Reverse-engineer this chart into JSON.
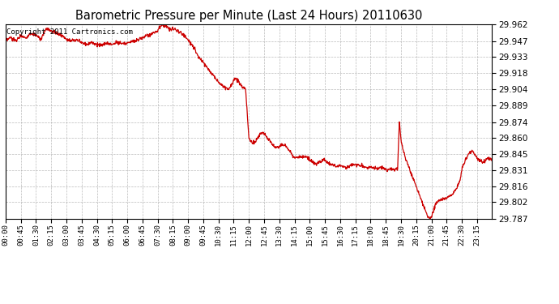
{
  "title": "Barometric Pressure per Minute (Last 24 Hours) 20110630",
  "copyright": "Copyright 2011 Cartronics.com",
  "line_color": "#cc0000",
  "background_color": "#ffffff",
  "grid_color": "#aaaaaa",
  "ylim": [
    29.787,
    29.962
  ],
  "yticks": [
    29.787,
    29.802,
    29.816,
    29.831,
    29.845,
    29.86,
    29.874,
    29.889,
    29.904,
    29.918,
    29.933,
    29.947,
    29.962
  ],
  "xtick_labels": [
    "00:00",
    "00:45",
    "01:30",
    "02:15",
    "03:00",
    "03:45",
    "04:30",
    "05:15",
    "06:00",
    "06:45",
    "07:30",
    "08:15",
    "09:00",
    "09:45",
    "10:30",
    "11:15",
    "12:00",
    "12:45",
    "13:30",
    "14:15",
    "15:00",
    "15:45",
    "16:30",
    "17:15",
    "18:00",
    "18:45",
    "19:30",
    "20:15",
    "21:00",
    "21:45",
    "22:30",
    "23:15"
  ],
  "waypoints": [
    [
      0,
      29.947
    ],
    [
      15,
      29.95
    ],
    [
      30,
      29.947
    ],
    [
      45,
      29.952
    ],
    [
      60,
      29.95
    ],
    [
      75,
      29.954
    ],
    [
      90,
      29.952
    ],
    [
      105,
      29.948
    ],
    [
      120,
      29.958
    ],
    [
      135,
      29.956
    ],
    [
      150,
      29.954
    ],
    [
      165,
      29.952
    ],
    [
      180,
      29.949
    ],
    [
      195,
      29.947
    ],
    [
      210,
      29.948
    ],
    [
      225,
      29.946
    ],
    [
      240,
      29.944
    ],
    [
      255,
      29.946
    ],
    [
      270,
      29.944
    ],
    [
      285,
      29.943
    ],
    [
      300,
      29.945
    ],
    [
      315,
      29.944
    ],
    [
      330,
      29.946
    ],
    [
      345,
      29.945
    ],
    [
      360,
      29.945
    ],
    [
      375,
      29.947
    ],
    [
      390,
      29.948
    ],
    [
      405,
      29.95
    ],
    [
      420,
      29.952
    ],
    [
      435,
      29.954
    ],
    [
      450,
      29.956
    ],
    [
      455,
      29.959
    ],
    [
      460,
      29.961
    ],
    [
      465,
      29.962
    ],
    [
      470,
      29.961
    ],
    [
      480,
      29.959
    ],
    [
      490,
      29.957
    ],
    [
      500,
      29.958
    ],
    [
      510,
      29.956
    ],
    [
      520,
      29.954
    ],
    [
      530,
      29.952
    ],
    [
      540,
      29.948
    ],
    [
      550,
      29.944
    ],
    [
      560,
      29.94
    ],
    [
      565,
      29.936
    ],
    [
      570,
      29.933
    ],
    [
      580,
      29.93
    ],
    [
      590,
      29.926
    ],
    [
      600,
      29.922
    ],
    [
      610,
      29.918
    ],
    [
      620,
      29.914
    ],
    [
      630,
      29.91
    ],
    [
      640,
      29.907
    ],
    [
      650,
      29.905
    ],
    [
      660,
      29.904
    ],
    [
      665,
      29.906
    ],
    [
      670,
      29.909
    ],
    [
      675,
      29.912
    ],
    [
      680,
      29.913
    ],
    [
      685,
      29.912
    ],
    [
      690,
      29.91
    ],
    [
      695,
      29.908
    ],
    [
      700,
      29.906
    ],
    [
      705,
      29.904
    ],
    [
      710,
      29.904
    ],
    [
      720,
      29.86
    ],
    [
      730,
      29.855
    ],
    [
      740,
      29.857
    ],
    [
      750,
      29.862
    ],
    [
      760,
      29.865
    ],
    [
      770,
      29.862
    ],
    [
      780,
      29.858
    ],
    [
      790,
      29.854
    ],
    [
      800,
      29.851
    ],
    [
      810,
      29.852
    ],
    [
      820,
      29.854
    ],
    [
      830,
      29.852
    ],
    [
      840,
      29.848
    ],
    [
      850,
      29.844
    ],
    [
      860,
      29.842
    ],
    [
      870,
      29.843
    ],
    [
      880,
      29.843
    ],
    [
      890,
      29.843
    ],
    [
      900,
      29.84
    ],
    [
      910,
      29.838
    ],
    [
      920,
      29.836
    ],
    [
      930,
      29.838
    ],
    [
      940,
      29.84
    ],
    [
      950,
      29.838
    ],
    [
      960,
      29.836
    ],
    [
      970,
      29.835
    ],
    [
      980,
      29.834
    ],
    [
      990,
      29.835
    ],
    [
      1000,
      29.834
    ],
    [
      1010,
      29.833
    ],
    [
      1020,
      29.835
    ],
    [
      1030,
      29.836
    ],
    [
      1040,
      29.835
    ],
    [
      1050,
      29.835
    ],
    [
      1060,
      29.834
    ],
    [
      1070,
      29.833
    ],
    [
      1080,
      29.834
    ],
    [
      1090,
      29.833
    ],
    [
      1100,
      29.832
    ],
    [
      1110,
      29.833
    ],
    [
      1120,
      29.832
    ],
    [
      1130,
      29.831
    ],
    [
      1140,
      29.832
    ],
    [
      1150,
      29.831
    ],
    [
      1160,
      29.832
    ],
    [
      1165,
      29.874
    ],
    [
      1170,
      29.858
    ],
    [
      1175,
      29.85
    ],
    [
      1180,
      29.845
    ],
    [
      1185,
      29.84
    ],
    [
      1190,
      29.836
    ],
    [
      1195,
      29.832
    ],
    [
      1200,
      29.828
    ],
    [
      1205,
      29.824
    ],
    [
      1210,
      29.82
    ],
    [
      1215,
      29.816
    ],
    [
      1220,
      29.812
    ],
    [
      1225,
      29.808
    ],
    [
      1230,
      29.804
    ],
    [
      1235,
      29.8
    ],
    [
      1240,
      29.796
    ],
    [
      1245,
      29.792
    ],
    [
      1250,
      29.789
    ],
    [
      1255,
      29.787
    ],
    [
      1260,
      29.789
    ],
    [
      1265,
      29.793
    ],
    [
      1270,
      29.798
    ],
    [
      1275,
      29.802
    ],
    [
      1280,
      29.803
    ],
    [
      1285,
      29.804
    ],
    [
      1290,
      29.804
    ],
    [
      1295,
      29.805
    ],
    [
      1300,
      29.806
    ],
    [
      1305,
      29.806
    ],
    [
      1315,
      29.808
    ],
    [
      1325,
      29.81
    ],
    [
      1335,
      29.815
    ],
    [
      1345,
      29.822
    ],
    [
      1350,
      29.831
    ],
    [
      1360,
      29.84
    ],
    [
      1370,
      29.845
    ],
    [
      1375,
      29.847
    ],
    [
      1380,
      29.848
    ],
    [
      1385,
      29.846
    ],
    [
      1390,
      29.844
    ],
    [
      1395,
      29.842
    ],
    [
      1400,
      29.84
    ],
    [
      1410,
      29.838
    ],
    [
      1420,
      29.84
    ],
    [
      1430,
      29.842
    ],
    [
      1439,
      29.84
    ]
  ]
}
